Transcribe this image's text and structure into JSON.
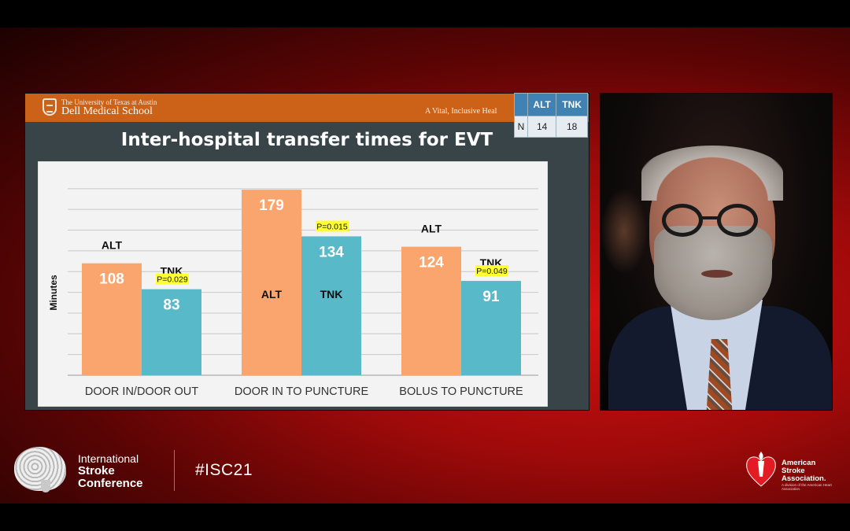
{
  "slide": {
    "university": "The University of Texas at Austin",
    "school": "Dell Medical School",
    "tagline": "A Vital, Inclusive Heal",
    "title": "Inter-hospital transfer times for EVT"
  },
  "n_table": {
    "headers": [
      "",
      "ALT",
      "TNK"
    ],
    "row": [
      "N",
      "14",
      "18"
    ]
  },
  "chart_data": {
    "type": "bar",
    "ylabel": "Minutes",
    "xlabel": "",
    "title": "Inter-hospital transfer times for EVT",
    "categories": [
      "DOOR IN/DOOR OUT",
      "DOOR IN TO PUNCTURE",
      "BOLUS TO PUNCTURE"
    ],
    "series": [
      {
        "name": "ALT",
        "color": "#f9a56d",
        "values": [
          108,
          179,
          124
        ]
      },
      {
        "name": "TNK",
        "color": "#58b9c9",
        "values": [
          83,
          134,
          91
        ]
      }
    ],
    "p_values": [
      "P=0.029",
      "P=0.015",
      "P=0.049"
    ],
    "ylim": [
      0,
      200
    ],
    "grid": true
  },
  "branding": {
    "event_line1": "International",
    "event_line2": "Stroke",
    "event_line3": "Conference",
    "hashtag": "#ISC21",
    "aha_name": "American Stroke Association.",
    "aha_sub": "A division of the American Heart Association."
  }
}
